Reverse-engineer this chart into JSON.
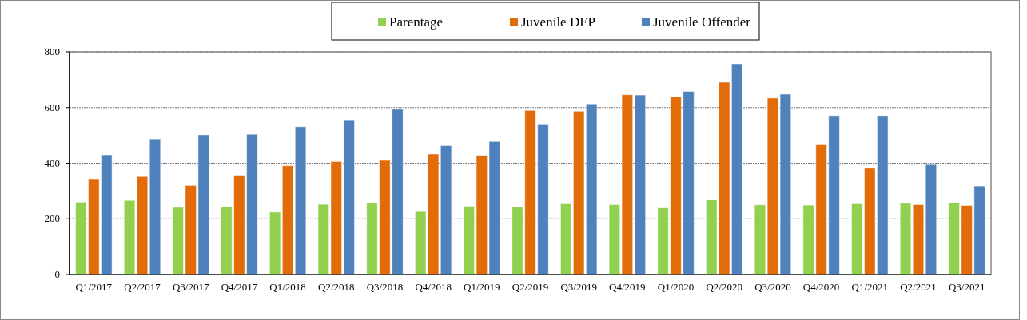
{
  "chart_data": {
    "type": "bar",
    "categories": [
      "Q1/2017",
      "Q2/2017",
      "Q3/2017",
      "Q4/2017",
      "Q1/2018",
      "Q2/2018",
      "Q3/2018",
      "Q4/2018",
      "Q1/2019",
      "Q2/2019",
      "Q3/2019",
      "Q4/2019",
      "Q1/2020",
      "Q2/2020",
      "Q3/2020",
      "Q4/2020",
      "Q1/2021",
      "Q2/2021",
      "Q3/2021"
    ],
    "series": [
      {
        "name": "Parentage",
        "color": "#92d050",
        "values": [
          260,
          266,
          241,
          244,
          224,
          252,
          256,
          226,
          245,
          242,
          254,
          251,
          239,
          269,
          250,
          249,
          254,
          256,
          258
        ]
      },
      {
        "name": "Juvenile DEP",
        "color": "#e36c0a",
        "values": [
          344,
          352,
          320,
          357,
          391,
          406,
          410,
          433,
          428,
          590,
          587,
          646,
          638,
          691,
          634,
          466,
          382,
          251,
          248
        ]
      },
      {
        "name": "Juvenile Offender",
        "color": "#4f81bd",
        "values": [
          430,
          487,
          502,
          504,
          531,
          553,
          594,
          463,
          478,
          538,
          613,
          645,
          658,
          757,
          648,
          571,
          571,
          395,
          318
        ]
      }
    ],
    "ylim": [
      0,
      800
    ],
    "yticks": [
      0,
      200,
      400,
      600,
      800
    ],
    "grid": "y",
    "legend": "top"
  }
}
